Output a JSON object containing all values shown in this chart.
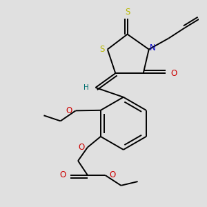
{
  "background_color": "#e0e0e0",
  "bond_color": "#000000",
  "S_color": "#b8b800",
  "N_color": "#0000cc",
  "O_color": "#cc0000",
  "H_color": "#007070",
  "figsize": [
    3.0,
    3.0
  ],
  "dpi": 100,
  "lw": 1.4,
  "fs": 7.5,
  "xlim": [
    30,
    270
  ],
  "ylim": [
    20,
    280
  ]
}
